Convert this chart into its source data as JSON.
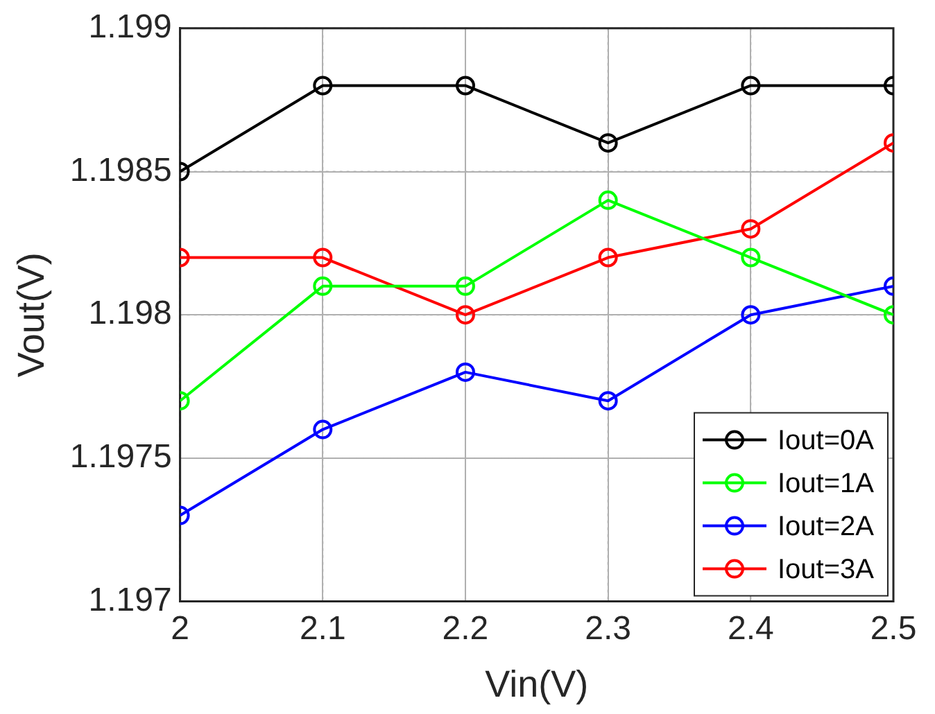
{
  "chart_data": {
    "type": "line",
    "xlabel": "Vin(V)",
    "ylabel": "Vout(V)",
    "x": [
      2,
      2.1,
      2.2,
      2.3,
      2.4,
      2.5
    ],
    "series": [
      {
        "name": "Iout=0A",
        "color": "#000000",
        "values": [
          1.1985,
          1.1988,
          1.1988,
          1.1986,
          1.1988,
          1.1988
        ]
      },
      {
        "name": "Iout=1A",
        "color": "#00ff00",
        "values": [
          1.1977,
          1.1981,
          1.1981,
          1.1984,
          1.1982,
          1.198
        ]
      },
      {
        "name": "Iout=2A",
        "color": "#0000ff",
        "values": [
          1.1973,
          1.1976,
          1.1978,
          1.1977,
          1.198,
          1.1981
        ]
      },
      {
        "name": "Iout=3A",
        "color": "#ff0000",
        "values": [
          1.1982,
          1.1982,
          1.198,
          1.1982,
          1.1983,
          1.1986
        ]
      }
    ],
    "xlim": [
      2,
      2.5
    ],
    "xticks": [
      2,
      2.1,
      2.2,
      2.3,
      2.4,
      2.5
    ],
    "ylim": [
      1.197,
      1.199
    ],
    "yticks": [
      1.197,
      1.1975,
      1.198,
      1.1985,
      1.199
    ],
    "grid": true,
    "legend": "bottom right",
    "marker": "circle",
    "line_style": "solid"
  }
}
